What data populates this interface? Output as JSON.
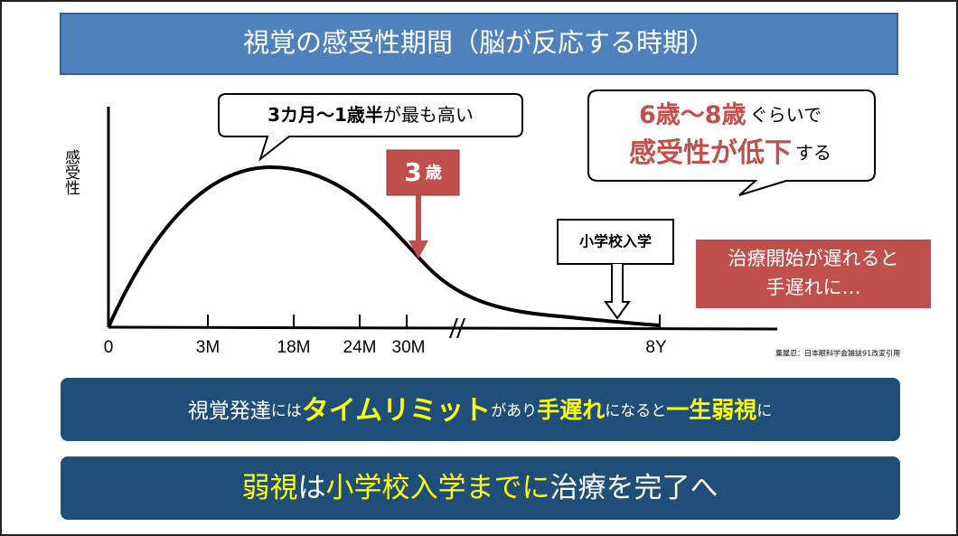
{
  "title": "視覚の感受性期間（脳が反応する時期）",
  "graph": {
    "y_label": "感受性",
    "x_labels": [
      "0",
      "3M",
      "18M",
      "24M",
      "30M",
      "8Y"
    ],
    "peak_callout": [
      "3カ月〜1歳半",
      "が最も高い"
    ],
    "marker": [
      "3",
      "歳"
    ],
    "decline_callout": {
      "line1": [
        "6歳〜8歳",
        "ぐらいで"
      ],
      "line2": [
        "感受性が低下",
        "する"
      ]
    },
    "school_label": "小学校入学",
    "warning": [
      "治療開始が遅れると",
      "手遅れに…"
    ],
    "citation": "粟屋忍：日本眼科学会雑誌91改変引用"
  },
  "banners": [
    [
      "視覚発達",
      "には",
      "タイムリミット",
      "があり",
      "手遅れ",
      "になると",
      "一生弱視",
      "に"
    ],
    [
      "弱視",
      "は",
      "小学校入学までに",
      "治療を完了へ"
    ]
  ]
}
